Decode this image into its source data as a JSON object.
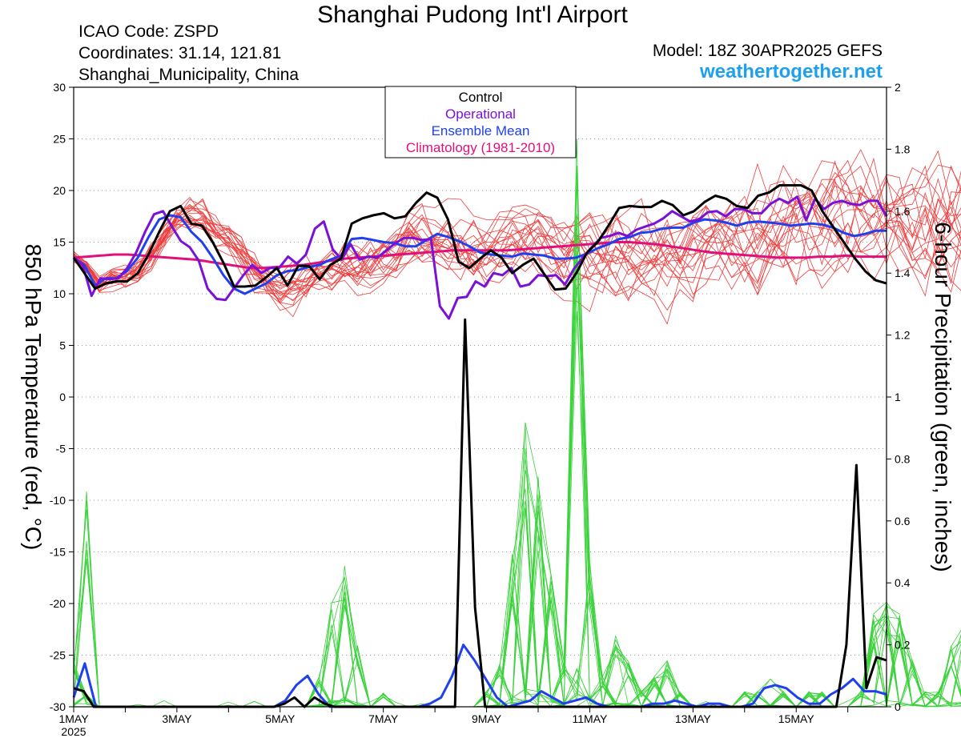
{
  "header": {
    "title": "Shanghai Pudong Int'l Airport",
    "icao": "ICAO Code: ZSPD",
    "coords": "Coordinates: 31.14, 121.81",
    "region": "Shanghai_Municipality, China",
    "model": "Model: 18Z 30APR2025 GEFS",
    "site": "weathertogether.net"
  },
  "colors": {
    "control": "#000000",
    "operational": "#7b10d6",
    "ensemble_mean": "#2040ee",
    "climatology": "#e0107a",
    "members_temp": "#f03c3c",
    "members_precip": "#3ad23a",
    "site": "#1ea0ee"
  },
  "chart_data": {
    "type": "line",
    "legend": {
      "placement": "top-center",
      "entries": [
        "Control",
        "Operational",
        "Ensemble Mean",
        "Climatology (1981-2010)"
      ]
    },
    "left_axis": {
      "label": "850 hPa Temperature (red, °C)",
      "range": [
        -30,
        30
      ],
      "ticks": [
        "30",
        "25",
        "20",
        "15",
        "10",
        "5",
        "0",
        "-5",
        "-10",
        "-15",
        "-20",
        "-25",
        "-30"
      ]
    },
    "right_axis": {
      "label": "6-hour Precipitation (green, inches)",
      "range": [
        0,
        2
      ],
      "ticks": [
        "2",
        "1.8",
        "1.6",
        "1.4",
        "1.2",
        "1",
        "0.8",
        "0.6",
        "0.4",
        "0.2",
        "0"
      ]
    },
    "x_axis": {
      "start": "1 May 2025 00Z",
      "end": "16 May 2025 18Z",
      "step_hours": 6,
      "ticks": [
        {
          "label": "1MAY",
          "sub": "2025",
          "day": 1
        },
        {
          "label": "3MAY",
          "day": 3
        },
        {
          "label": "5MAY",
          "day": 5
        },
        {
          "label": "7MAY",
          "day": 7
        },
        {
          "label": "9MAY",
          "day": 9
        },
        {
          "label": "11MAY",
          "day": 11
        },
        {
          "label": "13MAY",
          "day": 13
        },
        {
          "label": "15MAY",
          "day": 15
        }
      ]
    },
    "grid": "dotted horizontal",
    "series": {
      "control_temp": [
        13.5,
        12,
        10.5,
        11,
        11.2,
        11.2,
        12,
        13.8,
        16,
        18,
        18.5,
        16.8,
        16.6,
        15,
        13,
        10.7,
        10.7,
        10.8,
        11.6,
        12.5,
        10.8,
        12.7,
        12.7,
        11.4,
        12.8,
        13.4,
        16.8,
        17.3,
        17.6,
        17.8,
        17.3,
        17.5,
        18.8,
        19.8,
        19.3,
        17.2,
        13.1,
        12.5,
        13.4,
        14.2,
        13.5,
        12,
        12.8,
        13.4,
        11.9,
        10.4,
        10.5,
        12,
        14,
        15,
        16.6,
        18.3,
        18.5,
        18.4,
        18.4,
        19,
        18.6,
        17.6,
        18,
        18.9,
        19.5,
        19.2,
        18.5,
        18.3,
        19.5,
        19.8,
        20.5,
        20.5,
        20.5,
        20,
        18,
        16.5,
        15,
        13.5,
        12.2,
        11.3,
        11
      ],
      "operational_temp": [
        13.5,
        12.8,
        9.8,
        11.5,
        11.4,
        11.5,
        12.5,
        14,
        16,
        17.7,
        18,
        16.5,
        15.1,
        14.5,
        13.2,
        10.5,
        9.5,
        9.4,
        10.6,
        11.8,
        12.8,
        12,
        12.5,
        12.5,
        13.6,
        12.9,
        13.8,
        16.3,
        17,
        14.3,
        13.3,
        14.8,
        13.3,
        13.6,
        13.5,
        14.2,
        14.9,
        15.4,
        15.4,
        15.2,
        15.3,
        8.8,
        7.6,
        9.6,
        9.7,
        11.2,
        10.7,
        12,
        11.8,
        12.5,
        10.7,
        10.9,
        11.8,
        11.7,
        11.8,
        10.9,
        12.4,
        13.5,
        14.5,
        15.4,
        15.6,
        15.9,
        15.6,
        16.2,
        16.5,
        16.8,
        17.3,
        18,
        17.5,
        17,
        17.2,
        17.9,
        18,
        17.5,
        18.2,
        18.2,
        17.8,
        17.8,
        18.7,
        19.2,
        18.8,
        19.4,
        17.1,
        19.2,
        18.2,
        18.8,
        19,
        18.7,
        18.6,
        19,
        19,
        17.5
      ],
      "ensemble_mean_temp": [
        13.5,
        12.8,
        10.8,
        11.5,
        11.5,
        12.2,
        13.5,
        15.5,
        17.2,
        17.6,
        17.4,
        16,
        15,
        13.5,
        11.8,
        10.5,
        10,
        10.5,
        11,
        11.8,
        12.2,
        12.3,
        12.6,
        12.8,
        13.3,
        13.7,
        15.3,
        15.4,
        15.2,
        15,
        14.9,
        14.6,
        14.6,
        15.2,
        15.8,
        15.5,
        15.1,
        14.6,
        14,
        13.8,
        13.7,
        13.6,
        13.9,
        13.8,
        13.7,
        13.4,
        13.4,
        13.5,
        13.9,
        14.4,
        14.8,
        15.3,
        15.5,
        15.9,
        16,
        16.3,
        16.4,
        16.4,
        16.9,
        17.2,
        17.1,
        16.9,
        16.6,
        16.9,
        17,
        16.9,
        16.8,
        16.6,
        16.7,
        16.8,
        16.7,
        16.4,
        15.9,
        15.6,
        15.8,
        16.1,
        16.1
      ],
      "climatology_temp": [
        13.5,
        13.6,
        13.7,
        13.8,
        13.8,
        13.7,
        13.6,
        13.5,
        13.4,
        13.3,
        13.1,
        12.9,
        12.7,
        12.5,
        12.5,
        12.6,
        12.7,
        12.8,
        13,
        13.2,
        13.4,
        13.5,
        13.6,
        13.7,
        13.8,
        13.9,
        14,
        14.1,
        14.2,
        14.2,
        14.2,
        14.2,
        14.2,
        14.3,
        14.4,
        14.5,
        14.6,
        14.7,
        14.8,
        14.9,
        15,
        15,
        14.9,
        14.8,
        14.6,
        14.4,
        14.2,
        14,
        13.9,
        13.8,
        13.7,
        13.6,
        13.5,
        13.5,
        13.5,
        13.6,
        13.6,
        13.7,
        13.6,
        13.6,
        13.6
      ],
      "control_precip": [
        0.06,
        0.05,
        0.0,
        0,
        0,
        0,
        0,
        0,
        0,
        0,
        0,
        0,
        0,
        0,
        0,
        0,
        0,
        0,
        0,
        0,
        0,
        0.01,
        0.03,
        0.0,
        0.03,
        0.01,
        0.0,
        0,
        0,
        0,
        0,
        0,
        0,
        0,
        0,
        0,
        0,
        0,
        0,
        1.25,
        0.32,
        0,
        0,
        0,
        0,
        0,
        0,
        0,
        0,
        0,
        0,
        0,
        0,
        0,
        0,
        0,
        0,
        0,
        0,
        0,
        0,
        0,
        0,
        0,
        0,
        0,
        0,
        0,
        0,
        0,
        0,
        0,
        0,
        0,
        0,
        0,
        0.0,
        0.2,
        0.78,
        0.06,
        0.16,
        0.15
      ],
      "ensemble_mean_precip": [
        0.03,
        0.14,
        0.0,
        0,
        0,
        0,
        0,
        0,
        0,
        0,
        0,
        0,
        0,
        0,
        0,
        0,
        0,
        0,
        0,
        0.02,
        0.07,
        0.1,
        0.04,
        0.0,
        0,
        0,
        0,
        0,
        0,
        0,
        0,
        0,
        0.01,
        0.03,
        0.1,
        0.2,
        0.15,
        0.09,
        0.03,
        0.0,
        0.01,
        0.02,
        0.05,
        0.03,
        0.01,
        0.02,
        0.03,
        0.01,
        0,
        0,
        0,
        0,
        0.01,
        0.01,
        0.02,
        0.01,
        0.0,
        0.01,
        0.01,
        0,
        0,
        0.01,
        0.06,
        0.07,
        0.06,
        0.03,
        0.01,
        0.01,
        0.04,
        0.06,
        0.09,
        0.05,
        0.05,
        0.04
      ]
    }
  }
}
